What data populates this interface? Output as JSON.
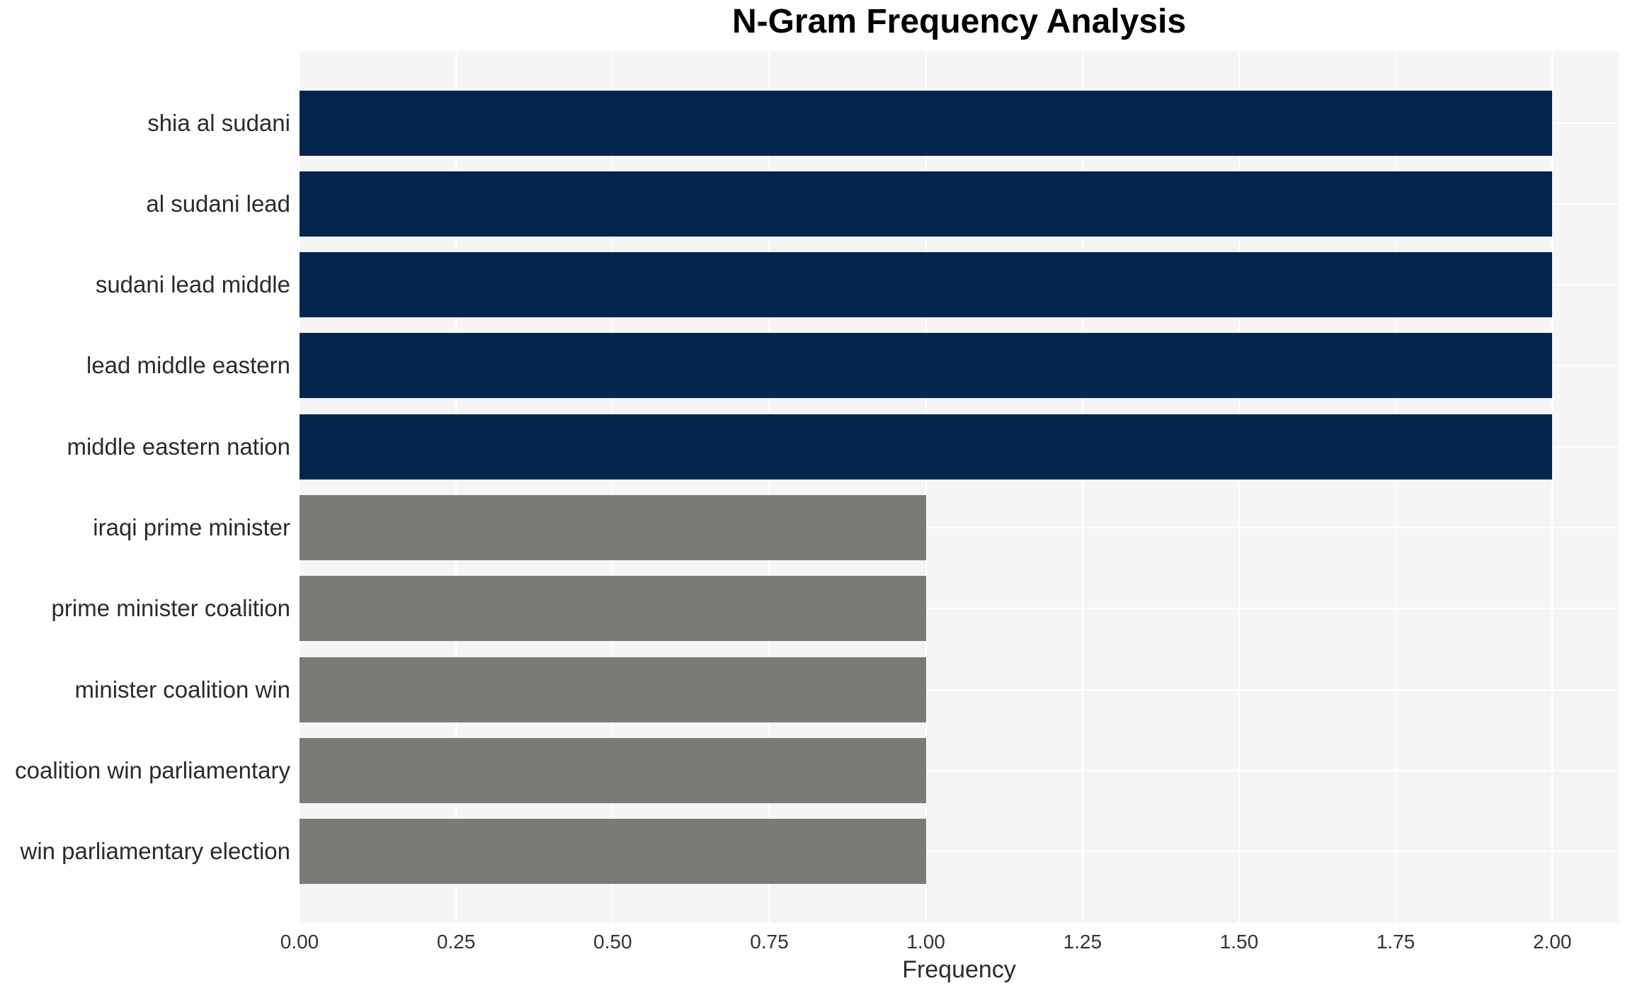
{
  "title": "N-Gram Frequency Analysis",
  "xlabel": "Frequency",
  "colors": {
    "bar_high": "#03264f",
    "bar_low": "#7a7a77",
    "plot_bg": "#f5f5f6",
    "grid": "#ffffff",
    "title_text": "#000000",
    "label_text": "#2b2b2b",
    "tick_text": "#333333",
    "figure_bg": "#ffffff"
  },
  "chart_data": {
    "type": "bar",
    "orientation": "horizontal",
    "title": "N-Gram Frequency Analysis",
    "xlabel": "Frequency",
    "ylabel": "",
    "categories": [
      "shia al sudani",
      "al sudani lead",
      "sudani lead middle",
      "lead middle eastern",
      "middle eastern nation",
      "iraqi prime minister",
      "prime minister coalition",
      "minister coalition win",
      "coalition win parliamentary",
      "win parliamentary election"
    ],
    "values": [
      2,
      2,
      2,
      2,
      2,
      1,
      1,
      1,
      1,
      1
    ],
    "bar_colors": [
      "#03264f",
      "#03264f",
      "#03264f",
      "#03264f",
      "#03264f",
      "#7a7a77",
      "#7a7a77",
      "#7a7a77",
      "#7a7a77",
      "#7a7a77"
    ],
    "xlim": [
      0,
      2.106
    ],
    "xticks": [
      0,
      0.25,
      0.5,
      0.75,
      1.0,
      1.25,
      1.5,
      1.75,
      2.0
    ],
    "xtick_labels": [
      "0.00",
      "0.25",
      "0.50",
      "0.75",
      "1.00",
      "1.25",
      "1.50",
      "1.75",
      "2.00"
    ],
    "grid": true,
    "grid_axis": "both",
    "legend": false
  }
}
